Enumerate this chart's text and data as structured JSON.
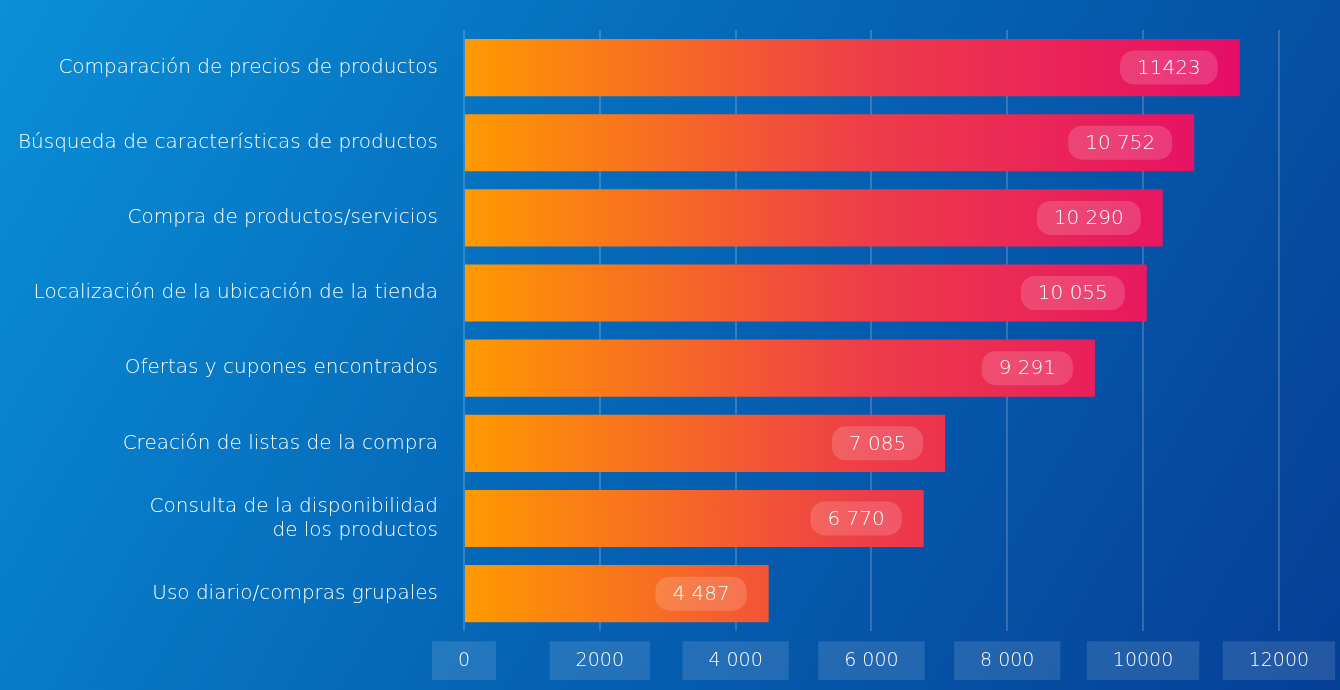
{
  "chart_data": {
    "type": "bar",
    "orientation": "horizontal",
    "categories": [
      "Comparación de precios de productos",
      "Búsqueda de características de productos",
      "Compra de productos/servicios",
      "Localización de la ubicación de la tienda",
      "Ofertas y cupones encontrados",
      "Creación de listas de la compra",
      "Consulta de la disponibilidad\nde los productos",
      "Uso diario/compras grupales"
    ],
    "values": [
      11423,
      10752,
      10290,
      10055,
      9291,
      7085,
      6770,
      4487
    ],
    "value_labels": [
      "11423",
      "10 752",
      "10 290",
      "10 055",
      "9 291",
      "7 085",
      "6 770",
      "4 487"
    ],
    "color": "#ee3d48",
    "xlim": [
      0,
      12900
    ],
    "xticks": [
      0,
      {
        "value": 2000,
        "label": "2000"
      },
      {
        "value": 4000,
        "label": "4 000"
      },
      {
        "value": 6000,
        "label": "6 000"
      },
      {
        "value": 8000,
        "label": "8 000"
      },
      {
        "value": 10000,
        "label": "10000"
      },
      {
        "value": 12000,
        "label": "12000"
      }
    ],
    "grid": "x",
    "legend": false
  }
}
